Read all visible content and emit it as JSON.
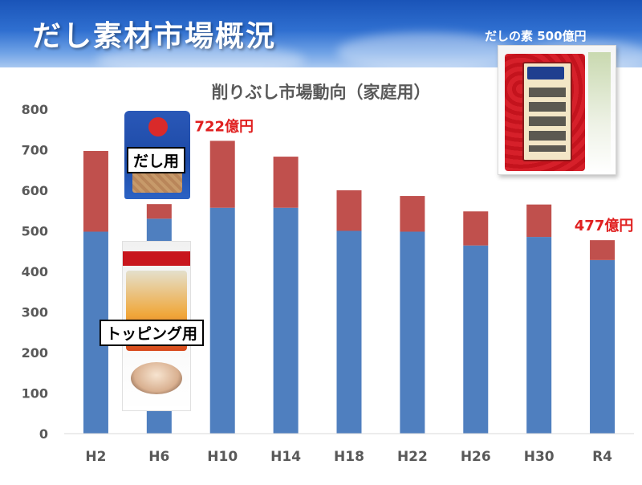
{
  "header": {
    "title": "だし素材市場概況"
  },
  "product_caption": "だしの素 500億円",
  "callouts": {
    "dashi": "だし用",
    "topping": "トッピング用"
  },
  "colors": {
    "series_base": "#4f7fbf",
    "series_top": "#c0504d",
    "highlight_text": "#e02020",
    "header_blue": "#2f6fd0"
  },
  "chart_data": {
    "type": "bar",
    "stacked": true,
    "title": "削りぶし市場動向（家庭用）",
    "categories": [
      "H2",
      "H6",
      "H10",
      "H14",
      "H18",
      "H22",
      "H26",
      "H30",
      "R4"
    ],
    "series": [
      {
        "values": [
          498,
          530,
          557,
          557,
          500,
          498,
          464,
          485,
          428
        ]
      },
      {
        "values": [
          199,
          36,
          165,
          126,
          100,
          88,
          84,
          80,
          49
        ]
      }
    ],
    "ylim": [
      0,
      800
    ],
    "yticks": [
      0,
      100,
      200,
      300,
      400,
      500,
      600,
      700,
      800
    ],
    "grid": false,
    "annotations": [
      {
        "category": "H10",
        "text": "722億円"
      },
      {
        "category": "R4",
        "text": "477億円"
      }
    ]
  }
}
